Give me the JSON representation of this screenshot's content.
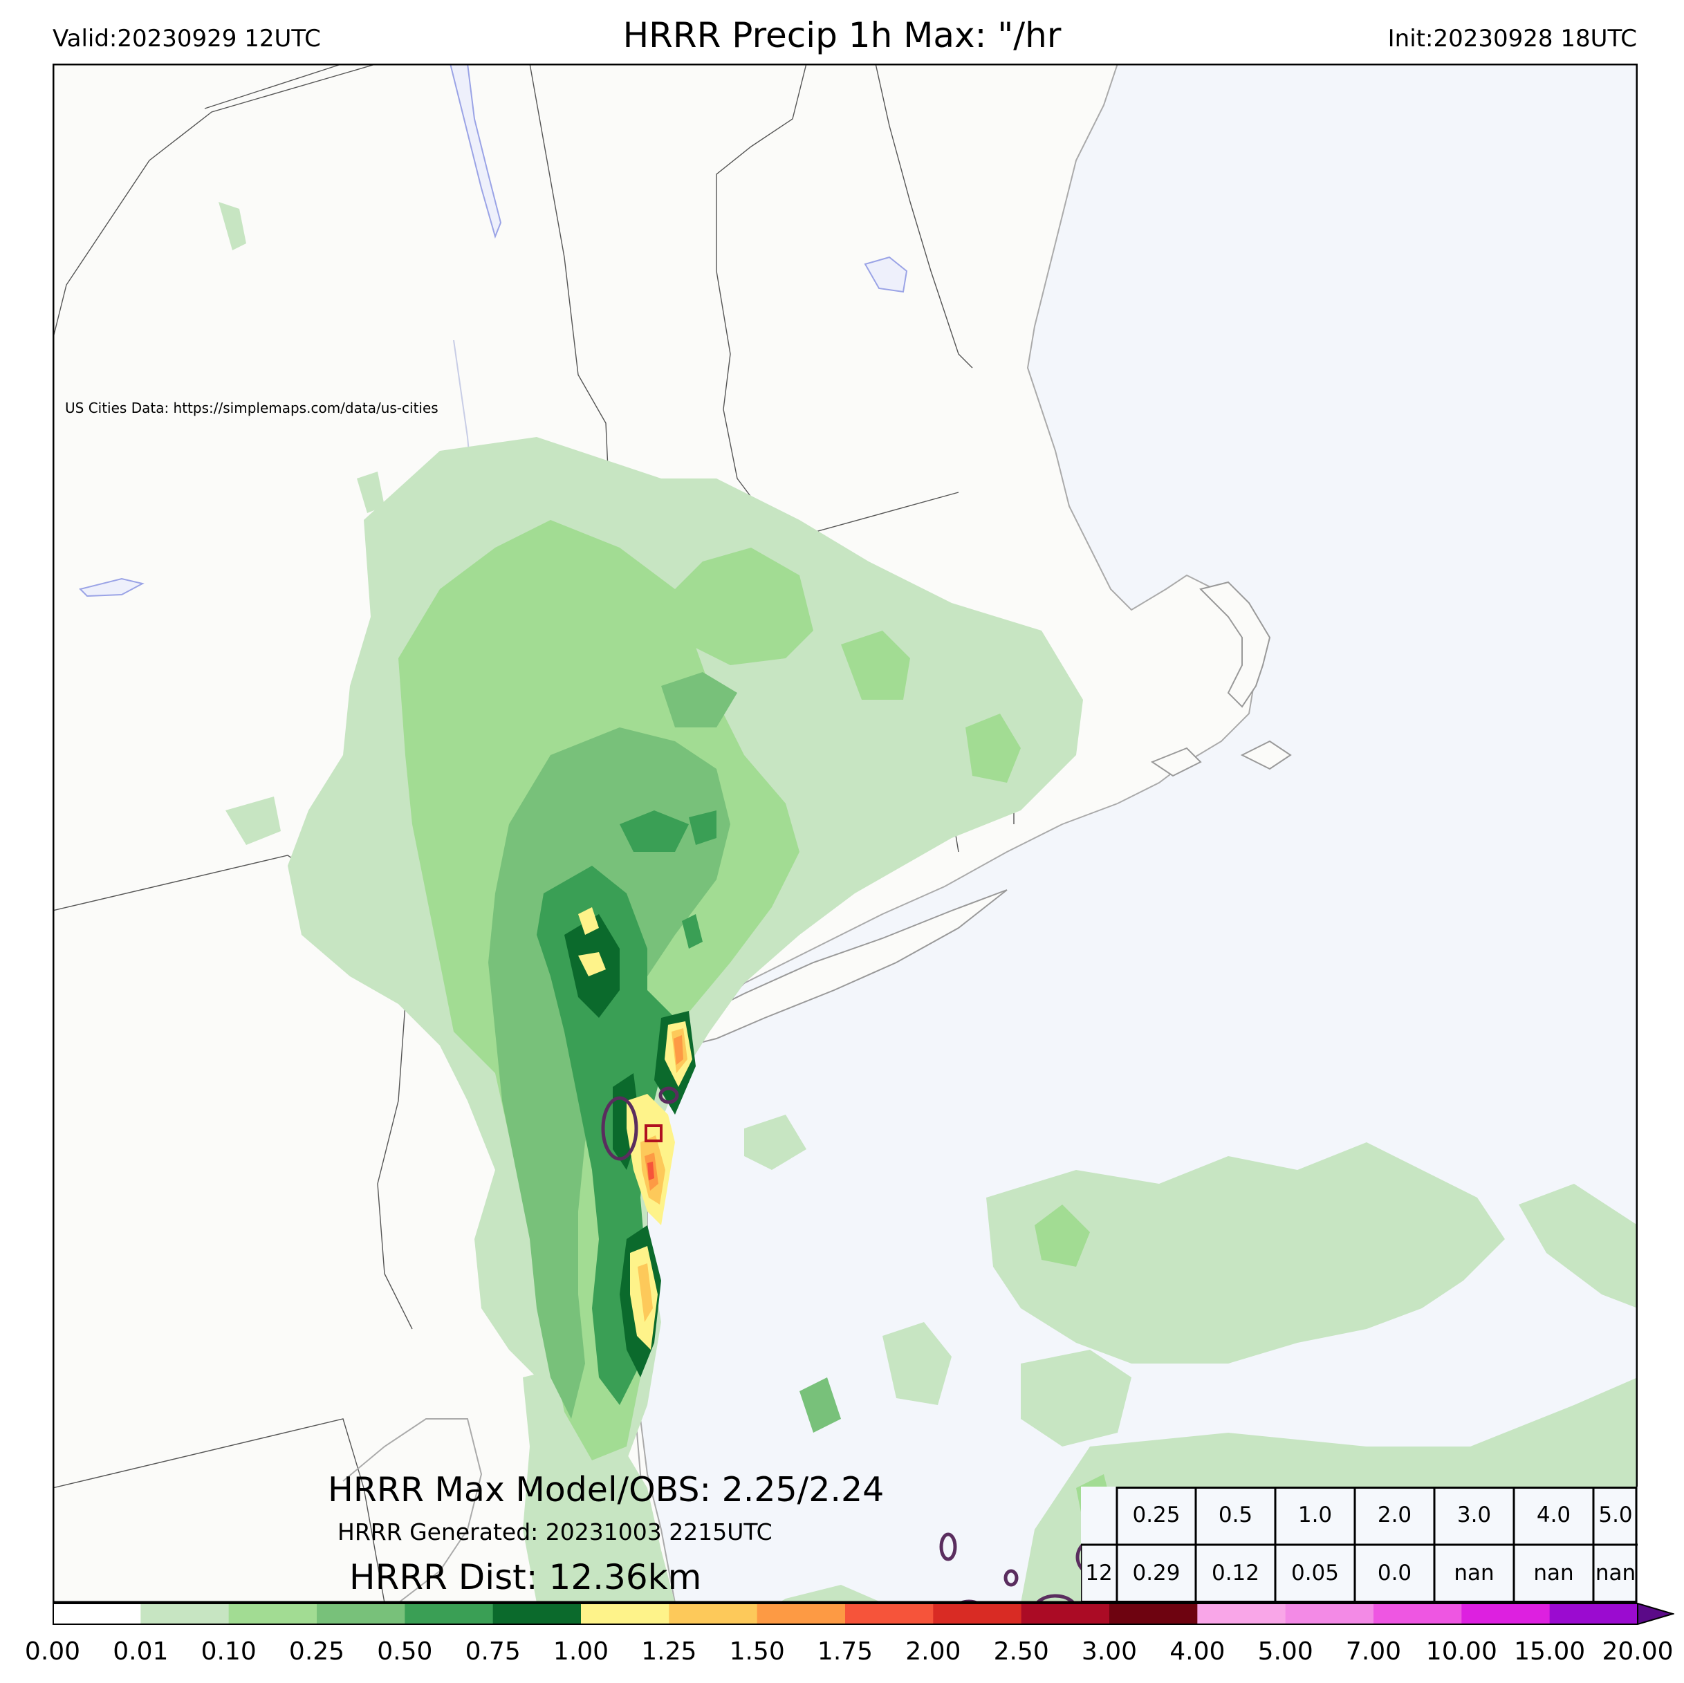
{
  "header": {
    "title": "HRRR Precip 1h Max: \"/hr",
    "valid": "Valid:20230929 12UTC",
    "init": "Init:20230928 18UTC"
  },
  "map": {
    "credit": "US Cities Data: https://simplemaps.com/data/us-cities",
    "land_color": "#fbfbf9",
    "water_color": "#f3f6fb",
    "boundary_color": "#555555",
    "obs_contour_color": "#5a2d5e",
    "max_marker_color": "#b01020"
  },
  "stats": {
    "max_line": "HRRR Max Model/OBS: 2.25/2.24",
    "generated": "HRRR Generated: 20231003 2215UTC",
    "dist": "HRRR Dist: 12.36km"
  },
  "colorbar": {
    "ticks": [
      "0.00",
      "0.01",
      "0.10",
      "0.25",
      "0.50",
      "0.75",
      "1.00",
      "1.25",
      "1.50",
      "1.75",
      "2.00",
      "2.50",
      "3.00",
      "4.00",
      "5.00",
      "7.00",
      "10.00",
      "15.00",
      "20.00"
    ],
    "colors": [
      "#ffffff",
      "#c7e5c2",
      "#a2dc93",
      "#78c17a",
      "#3a9f55",
      "#0b6a2c",
      "#fef38a",
      "#fdc95a",
      "#fd9a44",
      "#f6543a",
      "#d92b24",
      "#ab0b25",
      "#6e0310",
      "#f9a6e8",
      "#f38ae6",
      "#ee56e2",
      "#dd20e0",
      "#9b0bd0"
    ],
    "extend_color": "#5b0a88"
  },
  "table": {
    "header": [
      "0.25",
      "0.5",
      "1.0",
      "2.0",
      "3.0",
      "4.0",
      "5.0"
    ],
    "row": [
      "0.29",
      "0.12",
      "0.05",
      "0.0",
      "nan",
      "nan",
      "nan"
    ],
    "row_label": "12"
  }
}
